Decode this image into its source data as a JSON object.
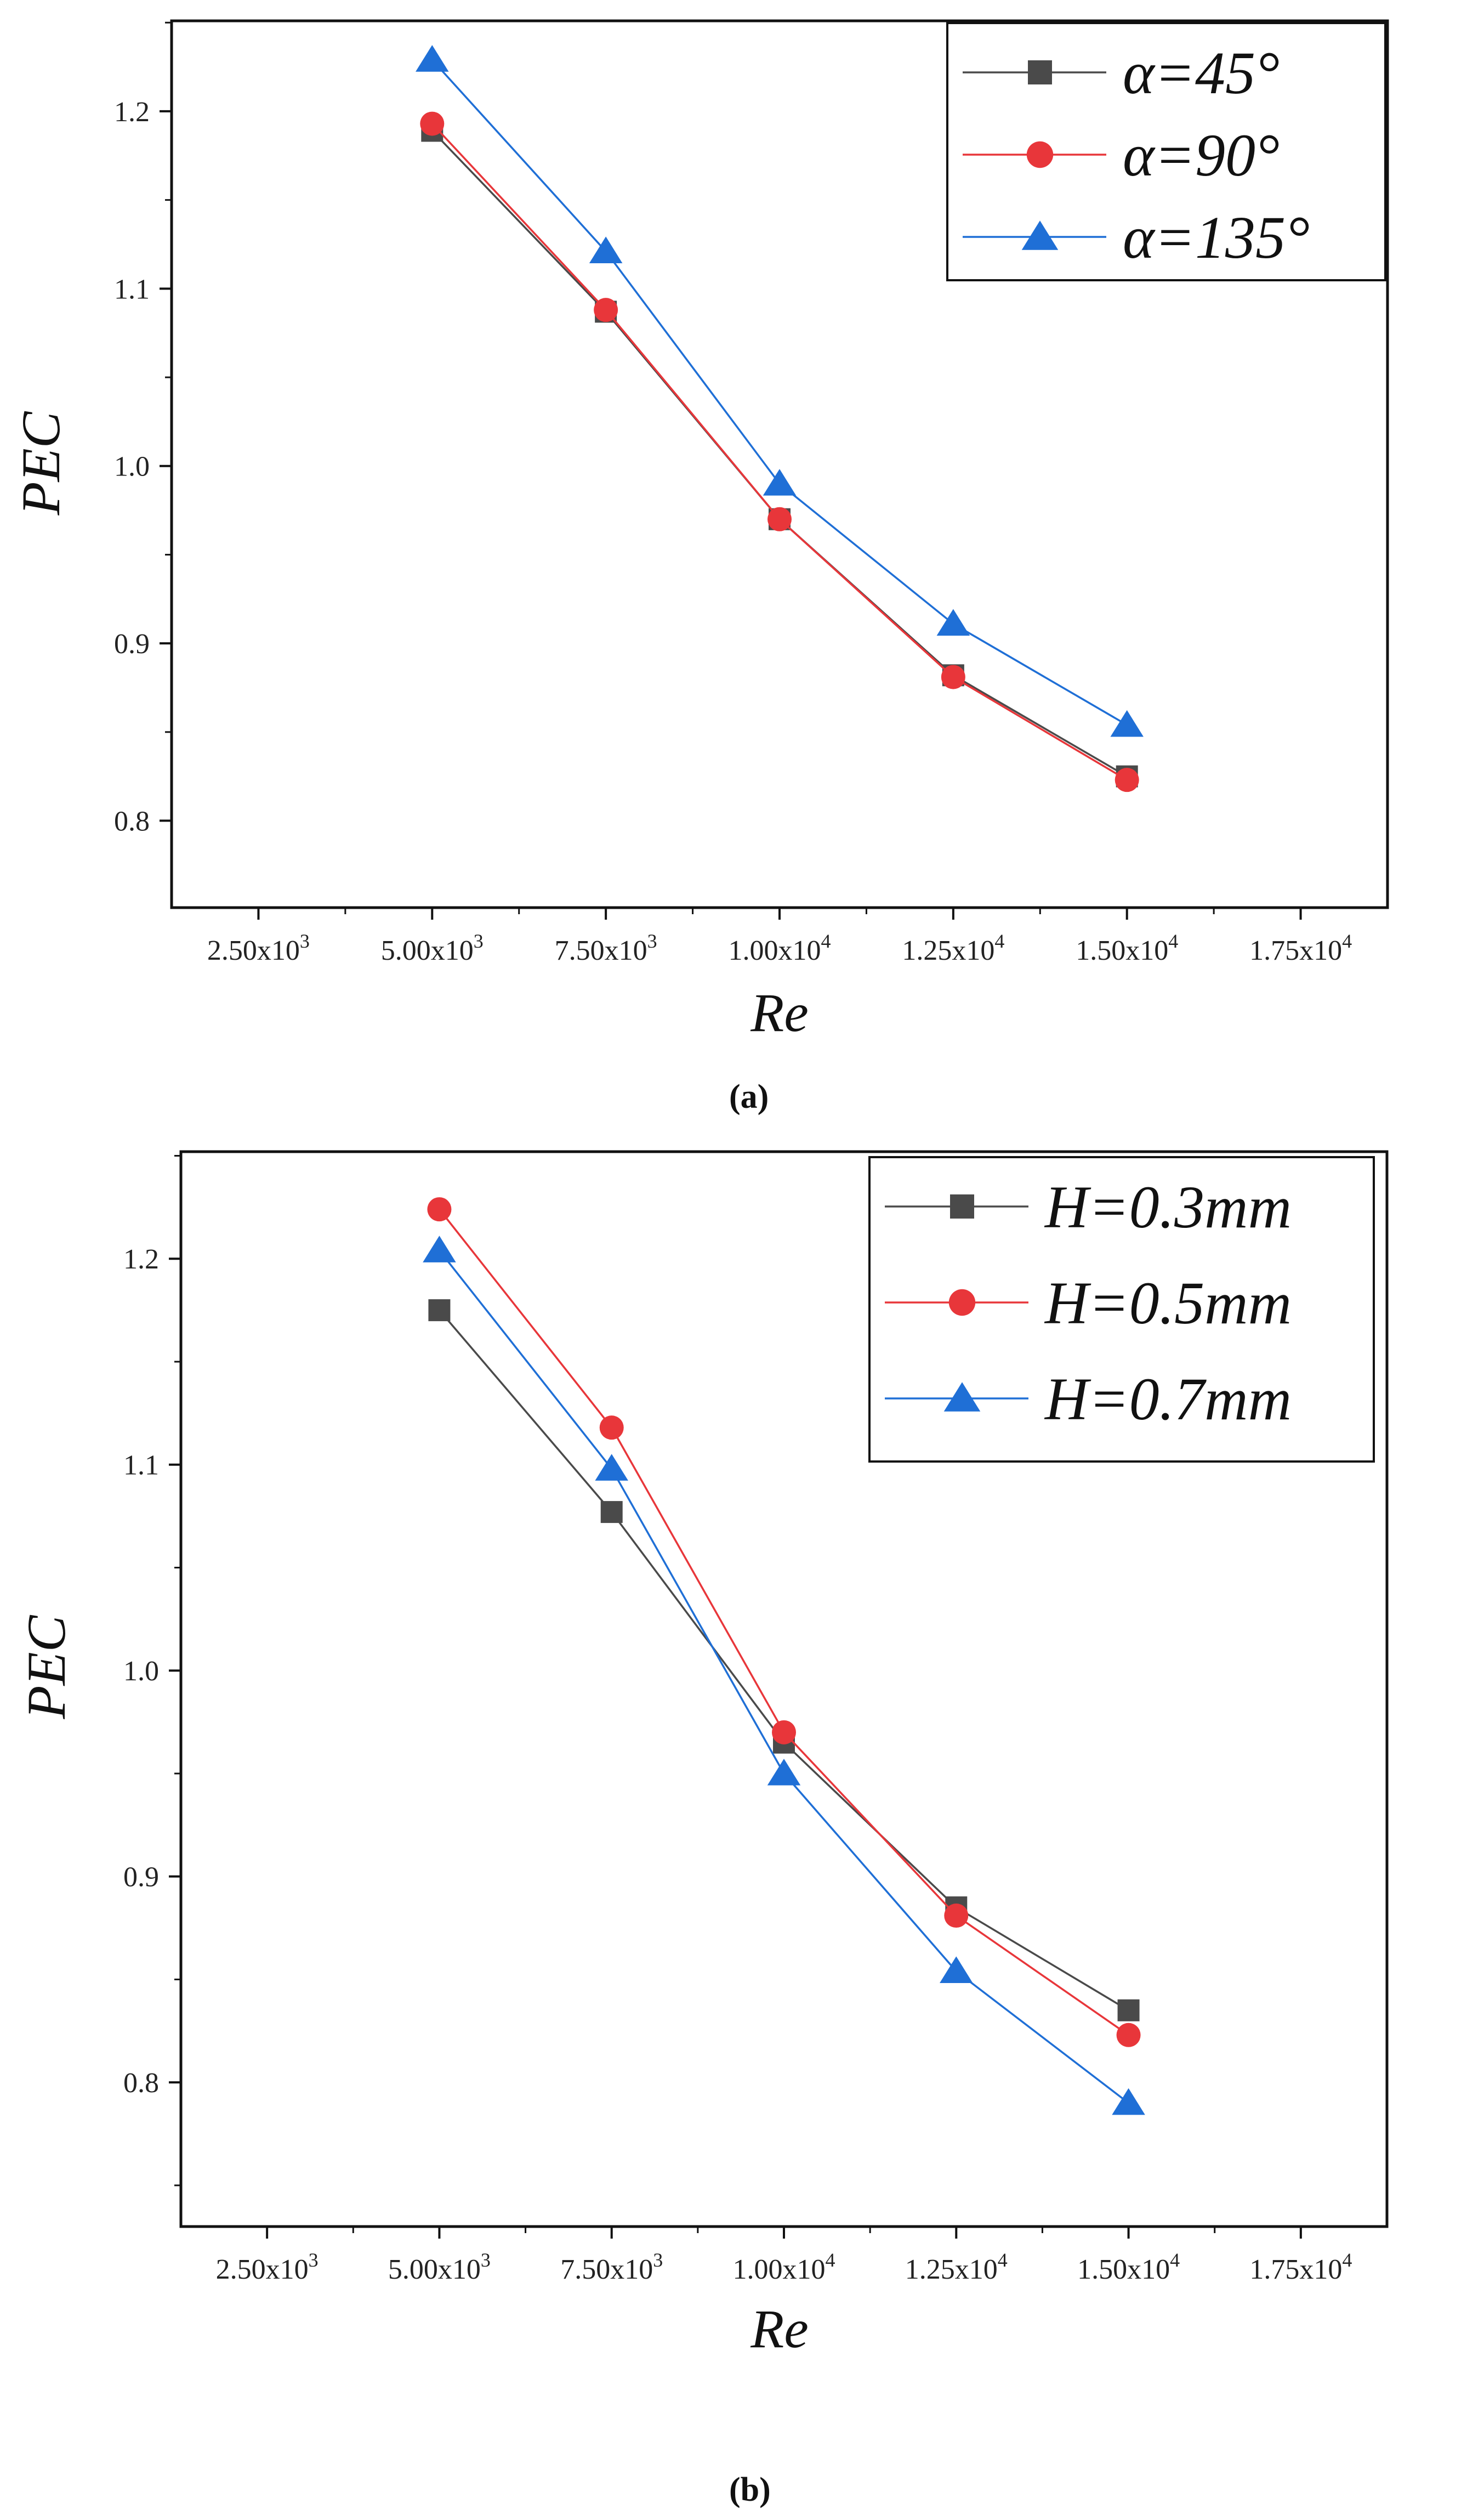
{
  "chart_data": [
    {
      "type": "line",
      "panel_label": "a",
      "xlabel": "Re",
      "ylabel": "PEC",
      "x": [
        5000,
        7500,
        10000,
        12500,
        15000
      ],
      "xlim": [
        1250,
        18750
      ],
      "ylim": [
        0.751,
        1.251
      ],
      "x_ticks": [
        {
          "value": 2500,
          "mantissa": "2.50x10",
          "exp": "3"
        },
        {
          "value": 5000,
          "mantissa": "5.00x10",
          "exp": "3"
        },
        {
          "value": 7500,
          "mantissa": "7.50x10",
          "exp": "3"
        },
        {
          "value": 10000,
          "mantissa": "1.00x10",
          "exp": "4"
        },
        {
          "value": 12500,
          "mantissa": "1.25x10",
          "exp": "4"
        },
        {
          "value": 15000,
          "mantissa": "1.50x10",
          "exp": "4"
        },
        {
          "value": 17500,
          "mantissa": "1.75x10",
          "exp": "4"
        }
      ],
      "y_ticks": [
        {
          "value": 0.8,
          "label": "0.8"
        },
        {
          "value": 0.9,
          "label": "0.9"
        },
        {
          "value": 1.0,
          "label": "1.0"
        },
        {
          "value": 1.1,
          "label": "1.1"
        },
        {
          "value": 1.2,
          "label": "1.2"
        }
      ],
      "legend_position": "top-right",
      "series": [
        {
          "name": "α=45°",
          "marker": "square",
          "color": "#4a4a4a",
          "values": [
            1.189,
            1.087,
            0.97,
            0.882,
            0.825
          ]
        },
        {
          "name": "α=90°",
          "marker": "circle",
          "color": "#e8363a",
          "values": [
            1.193,
            1.088,
            0.97,
            0.881,
            0.823
          ]
        },
        {
          "name": "α=135°",
          "marker": "triangle",
          "color": "#1f6fd6",
          "values": [
            1.229,
            1.121,
            0.99,
            0.911,
            0.854
          ]
        }
      ]
    },
    {
      "type": "line",
      "panel_label": "b",
      "xlabel": "Re",
      "ylabel": "PEC",
      "x": [
        5000,
        7500,
        10000,
        12500,
        15000
      ],
      "xlim": [
        1250,
        18750
      ],
      "ylim": [
        0.73,
        1.252
      ],
      "x_ticks": [
        {
          "value": 2500,
          "mantissa": "2.50x10",
          "exp": "3"
        },
        {
          "value": 5000,
          "mantissa": "5.00x10",
          "exp": "3"
        },
        {
          "value": 7500,
          "mantissa": "7.50x10",
          "exp": "3"
        },
        {
          "value": 10000,
          "mantissa": "1.00x10",
          "exp": "4"
        },
        {
          "value": 12500,
          "mantissa": "1.25x10",
          "exp": "4"
        },
        {
          "value": 15000,
          "mantissa": "1.50x10",
          "exp": "4"
        },
        {
          "value": 17500,
          "mantissa": "1.75x10",
          "exp": "4"
        }
      ],
      "y_ticks": [
        {
          "value": 0.8,
          "label": "0.8"
        },
        {
          "value": 0.9,
          "label": "0.9"
        },
        {
          "value": 1.0,
          "label": "1.0"
        },
        {
          "value": 1.1,
          "label": "1.1"
        },
        {
          "value": 1.2,
          "label": "1.2"
        }
      ],
      "legend_position": "top-right",
      "series": [
        {
          "name": "H=0.3mm",
          "marker": "square",
          "color": "#4a4a4a",
          "values": [
            1.175,
            1.077,
            0.965,
            0.885,
            0.835
          ]
        },
        {
          "name": "H=0.5mm",
          "marker": "circle",
          "color": "#e8363a",
          "values": [
            1.224,
            1.118,
            0.97,
            0.881,
            0.823
          ]
        },
        {
          "name": "H=0.7mm",
          "marker": "triangle",
          "color": "#1f6fd6",
          "values": [
            1.204,
            1.098,
            0.95,
            0.854,
            0.79
          ]
        }
      ]
    }
  ],
  "captions": [
    "(a)",
    "(b)"
  ]
}
